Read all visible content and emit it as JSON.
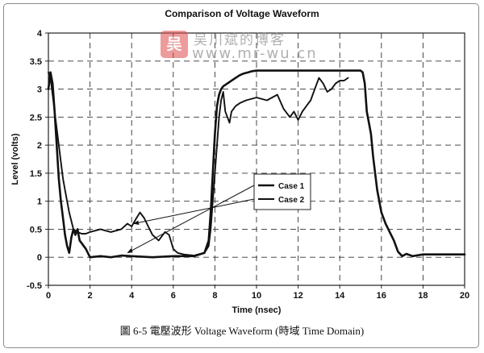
{
  "chart_data": {
    "type": "line",
    "title": "Comparison of Voltage Waveform",
    "xlabel": "Time (nsec)",
    "ylabel": "Level (volts)",
    "xlim": [
      0,
      20
    ],
    "ylim": [
      -0.5,
      4
    ],
    "xticks": [
      0,
      2,
      4,
      6,
      8,
      10,
      12,
      14,
      16,
      18,
      20
    ],
    "yticks": [
      -0.5,
      0,
      0.5,
      1,
      1.5,
      2,
      2.5,
      3,
      3.5,
      4
    ],
    "xtick_labels": [
      "0",
      "2",
      "4",
      "6",
      "8",
      "10",
      "12",
      "14",
      "16",
      "18",
      "20"
    ],
    "ytick_labels": [
      "-0.5",
      "0",
      "0.5",
      "1",
      "1.5",
      "2",
      "2.5",
      "3",
      "3.5",
      "4"
    ],
    "grid": true,
    "legend_position": "inside-right",
    "series": [
      {
        "name": "Case 1",
        "color": "#111111",
        "x": [
          0,
          0.1,
          0.2,
          0.3,
          0.4,
          0.5,
          0.6,
          0.7,
          0.8,
          0.9,
          1.0,
          1.1,
          1.2,
          1.3,
          1.4,
          1.5,
          1.6,
          1.8,
          2.0,
          2.5,
          3.0,
          3.5,
          4.0,
          5.0,
          6.0,
          7.0,
          7.5,
          7.7,
          7.8,
          7.9,
          8.0,
          8.1,
          8.2,
          8.3,
          8.4,
          8.6,
          8.8,
          9.0,
          9.2,
          9.4,
          9.6,
          9.8,
          10.0,
          10.5,
          11.0,
          12.0,
          13.0,
          14.0,
          14.8,
          15.0,
          15.1,
          15.2,
          15.3,
          15.4,
          15.5,
          15.6,
          15.8,
          16.0,
          16.2,
          16.4,
          16.6,
          16.8,
          17.0,
          17.2,
          17.5,
          18.0,
          19.0,
          20.0
        ],
        "y": [
          3.0,
          3.3,
          3.1,
          2.6,
          2.0,
          1.4,
          1.0,
          0.7,
          0.4,
          0.2,
          0.08,
          0.35,
          0.5,
          0.4,
          0.5,
          0.3,
          0.25,
          0.15,
          0.0,
          0.02,
          0.0,
          0.03,
          0.02,
          0.0,
          0.02,
          0.02,
          0.08,
          0.3,
          0.8,
          1.5,
          2.2,
          2.7,
          2.9,
          3.0,
          3.05,
          3.1,
          3.15,
          3.2,
          3.25,
          3.28,
          3.3,
          3.32,
          3.33,
          3.33,
          3.33,
          3.33,
          3.33,
          3.33,
          3.33,
          3.33,
          3.3,
          3.1,
          2.6,
          2.4,
          2.2,
          1.8,
          1.2,
          0.8,
          0.6,
          0.45,
          0.3,
          0.1,
          0.02,
          0.06,
          0.02,
          0.05,
          0.05,
          0.05
        ]
      },
      {
        "name": "Case 2",
        "color": "#111111",
        "x": [
          0,
          0.1,
          0.2,
          0.3,
          0.4,
          0.5,
          0.6,
          0.7,
          0.8,
          0.9,
          1.0,
          1.1,
          1.2,
          1.4,
          1.6,
          1.8,
          2.0,
          2.5,
          3.0,
          3.5,
          3.8,
          4.0,
          4.2,
          4.4,
          4.6,
          4.8,
          5.0,
          5.3,
          5.6,
          5.8,
          6.0,
          6.2,
          6.5,
          7.0,
          7.5,
          7.7,
          7.8,
          7.9,
          8.0,
          8.1,
          8.2,
          8.3,
          8.4,
          8.5,
          8.6,
          8.7,
          8.8,
          9.0,
          9.2,
          9.5,
          10.0,
          10.5,
          11.0,
          11.3,
          11.6,
          11.8,
          12.0,
          12.2,
          12.4,
          12.6,
          12.8,
          13.0,
          13.2,
          13.4,
          13.6,
          13.8,
          14.0,
          14.2,
          14.4
        ],
        "y": [
          3.3,
          3.2,
          2.9,
          2.6,
          2.3,
          2.0,
          1.7,
          1.4,
          1.2,
          1.0,
          0.8,
          0.65,
          0.5,
          0.45,
          0.42,
          0.42,
          0.45,
          0.5,
          0.45,
          0.5,
          0.6,
          0.55,
          0.68,
          0.8,
          0.7,
          0.55,
          0.4,
          0.3,
          0.45,
          0.4,
          0.15,
          0.08,
          0.05,
          0.03,
          0.08,
          0.2,
          0.5,
          1.0,
          1.5,
          2.0,
          2.5,
          2.8,
          2.95,
          2.6,
          2.5,
          2.4,
          2.6,
          2.7,
          2.75,
          2.8,
          2.85,
          2.8,
          2.9,
          2.65,
          2.5,
          2.6,
          2.45,
          2.6,
          2.7,
          2.8,
          3.0,
          3.2,
          3.1,
          2.95,
          3.0,
          3.1,
          3.15,
          3.15,
          3.2
        ]
      }
    ],
    "annotations": [
      {
        "label": "Case 1",
        "arrow_to": [
          3.8,
          0.08
        ]
      },
      {
        "label": "Case 2",
        "arrow_to": [
          4.1,
          0.6
        ]
      }
    ]
  },
  "caption": "圖 6-5  電壓波形 Voltage Waveform (時域  Time Domain)",
  "watermark": {
    "logo": "吴",
    "name": "吴川斌的博客",
    "url": "www.mr-wu.cn"
  }
}
